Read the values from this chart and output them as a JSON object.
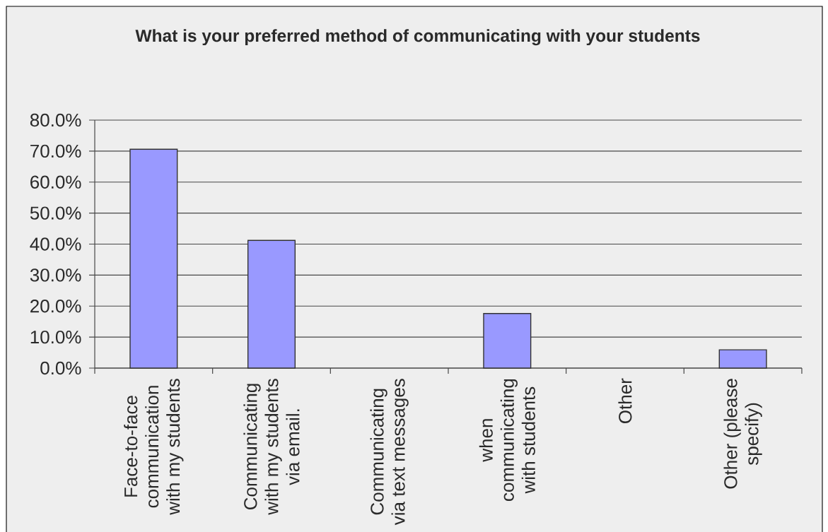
{
  "chart_data": {
    "type": "bar",
    "title": "What is your preferred method of communicating with your students",
    "categories": [
      "Face-to-face communication with my students",
      "Communicating with my students via email.",
      "Communicating via text messages",
      "when communicating with students",
      "Other",
      "Other (please specify)"
    ],
    "values": [
      70.6,
      41.2,
      0,
      17.6,
      0,
      5.9
    ],
    "color": "#9999ff",
    "ylim": [
      0,
      80
    ],
    "yticks": [
      {
        "value": 0,
        "label": "0.0%"
      },
      {
        "value": 10,
        "label": "10.0%"
      },
      {
        "value": 20,
        "label": "20.0%"
      },
      {
        "value": 30,
        "label": "30.0%"
      },
      {
        "value": 40,
        "label": "40.0%"
      },
      {
        "value": 50,
        "label": "50.0%"
      },
      {
        "value": 60,
        "label": "60.0%"
      },
      {
        "value": 70,
        "label": "70.0%"
      },
      {
        "value": 80,
        "label": "80.0%"
      }
    ],
    "grid": "y"
  }
}
